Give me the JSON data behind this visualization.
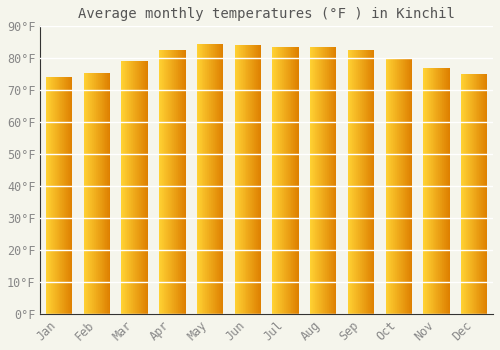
{
  "title": "Average monthly temperatures (°F ) in Kinchil",
  "months": [
    "Jan",
    "Feb",
    "Mar",
    "Apr",
    "May",
    "Jun",
    "Jul",
    "Aug",
    "Sep",
    "Oct",
    "Nov",
    "Dec"
  ],
  "values": [
    74,
    75.5,
    79,
    82.5,
    84.5,
    84,
    83.5,
    83.5,
    82.5,
    80,
    77,
    75
  ],
  "bar_color_left": "#FFD966",
  "bar_color_mid": "#FFAA00",
  "bar_color_right": "#E07800",
  "ylim": [
    0,
    90
  ],
  "yticks": [
    0,
    10,
    20,
    30,
    40,
    50,
    60,
    70,
    80,
    90
  ],
  "ytick_labels": [
    "0°F",
    "10°F",
    "20°F",
    "30°F",
    "40°F",
    "50°F",
    "60°F",
    "70°F",
    "80°F",
    "90°F"
  ],
  "background_color": "#f5f5ec",
  "grid_color": "#ddddcc",
  "title_fontsize": 10,
  "tick_fontsize": 8.5,
  "bar_width": 0.7
}
